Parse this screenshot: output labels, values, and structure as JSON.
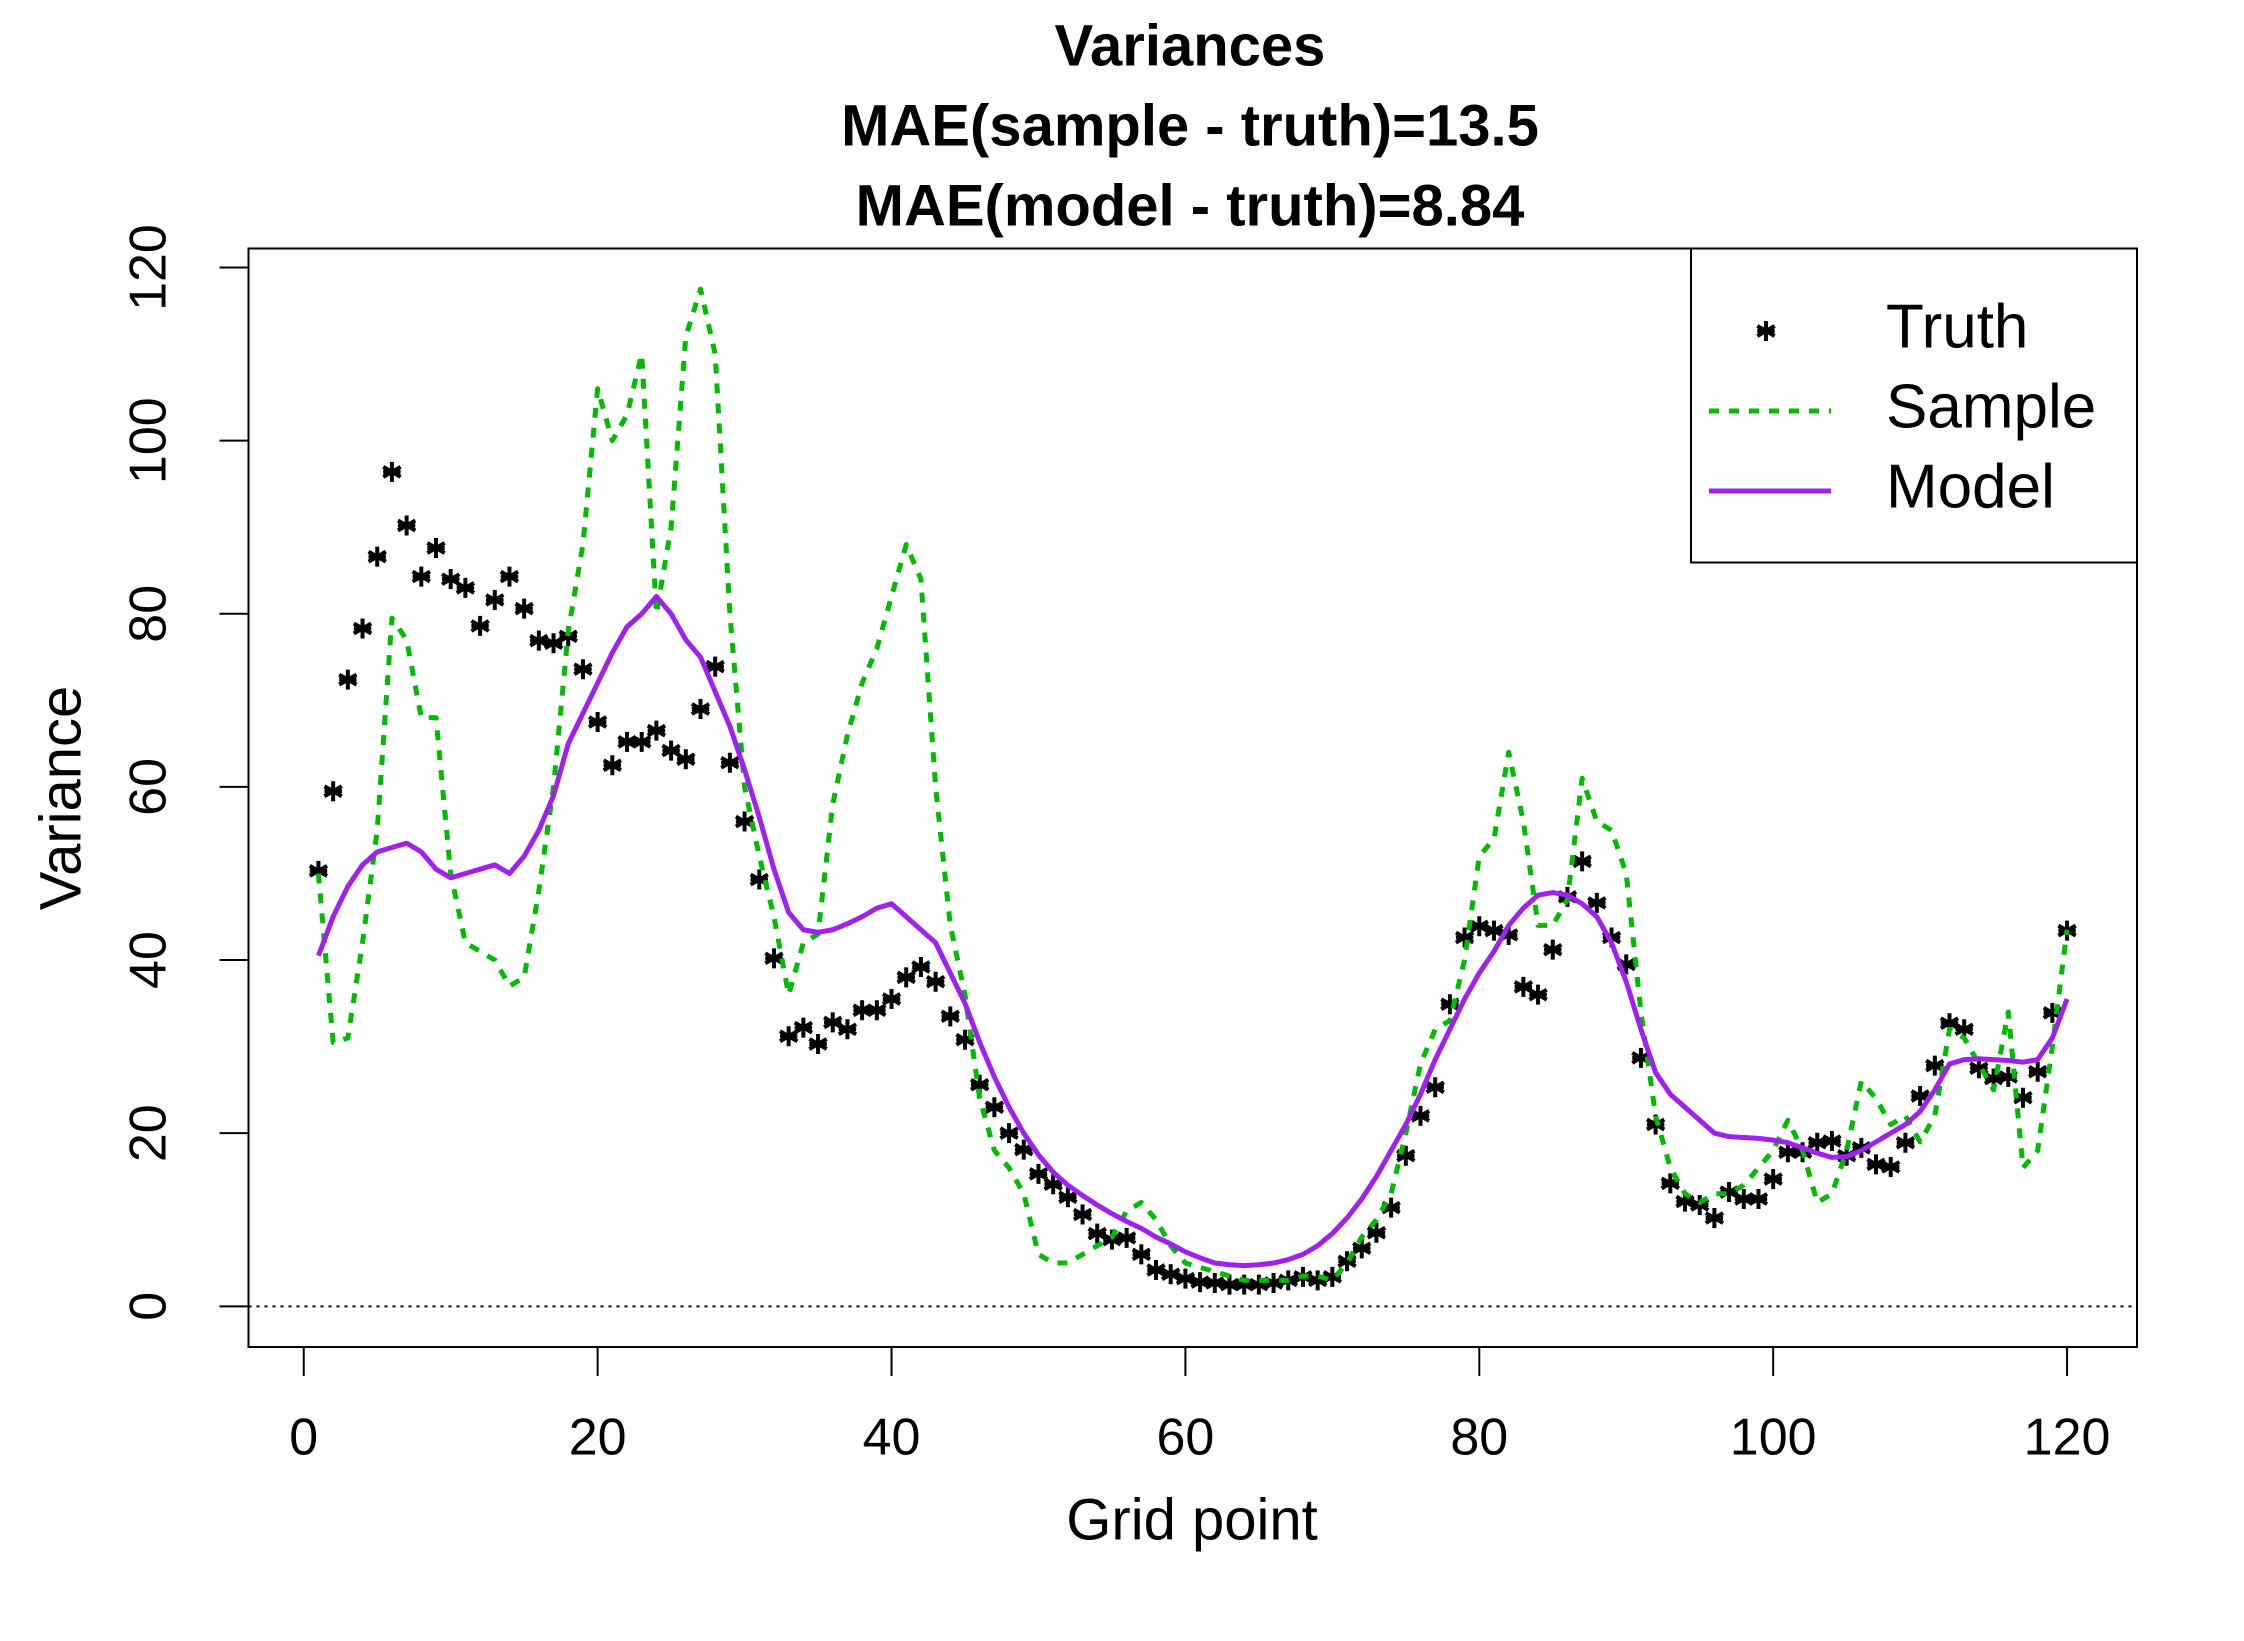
{
  "chart_data": {
    "type": "line",
    "title": "Variances",
    "subtitle": [
      "MAE(sample - truth)=13.5",
      "MAE(model - truth)=8.84"
    ],
    "xlabel": "Grid point",
    "ylabel": "Variance",
    "xlim": [
      -3.76,
      124.76
    ],
    "ylim": [
      -4.7,
      122.2
    ],
    "xticks": [
      0,
      20,
      40,
      60,
      80,
      100,
      120
    ],
    "yticks": [
      0,
      20,
      40,
      60,
      80,
      100,
      120
    ],
    "reference_line": 0,
    "legend": "topright",
    "x": [
      1,
      2,
      3,
      4,
      5,
      6,
      7,
      8,
      9,
      10,
      11,
      12,
      13,
      14,
      15,
      16,
      17,
      18,
      19,
      20,
      21,
      22,
      23,
      24,
      25,
      26,
      27,
      28,
      29,
      30,
      31,
      32,
      33,
      34,
      35,
      36,
      37,
      38,
      39,
      40,
      41,
      42,
      43,
      44,
      45,
      46,
      47,
      48,
      49,
      50,
      51,
      52,
      53,
      54,
      55,
      56,
      57,
      58,
      59,
      60,
      61,
      62,
      63,
      64,
      65,
      66,
      67,
      68,
      69,
      70,
      71,
      72,
      73,
      74,
      75,
      76,
      77,
      78,
      79,
      80,
      81,
      82,
      83,
      84,
      85,
      86,
      87,
      88,
      89,
      90,
      91,
      92,
      93,
      94,
      95,
      96,
      97,
      98,
      99,
      100,
      101,
      102,
      103,
      104,
      105,
      106,
      107,
      108,
      109,
      110,
      111,
      112,
      113,
      114,
      115,
      116,
      117,
      118,
      119,
      120
    ],
    "series": [
      {
        "name": "Truth",
        "color": "#000000",
        "style": "points",
        "values": [
          50.3,
          59.5,
          72.4,
          78.3,
          86.6,
          96.4,
          90.2,
          84.3,
          87.6,
          84,
          83,
          78.6,
          81.6,
          84.3,
          80.6,
          76.9,
          76.6,
          77.4,
          73.6,
          67.5,
          62.5,
          65.2,
          65.2,
          66.5,
          64.2,
          63.2,
          69,
          73.9,
          62.8,
          56,
          49.3,
          40.2,
          31.2,
          32.2,
          30.3,
          32.8,
          32,
          34.2,
          34.2,
          35.5,
          38,
          39.2,
          37.5,
          33.5,
          30.8,
          25.6,
          23,
          20,
          18.1,
          15.3,
          14.1,
          12.6,
          10.6,
          8.4,
          7.7,
          7.9,
          6,
          4.2,
          3.7,
          3.2,
          2.8,
          2.7,
          2.5,
          2.5,
          2.5,
          2.7,
          3,
          3.4,
          3,
          3.4,
          5.2,
          6.7,
          8.5,
          11.4,
          17.4,
          22,
          25.3,
          34.9,
          42.6,
          43.9,
          43.4,
          42.9,
          36.9,
          36,
          41.2,
          47.3,
          51.4,
          46.6,
          42.6,
          39.5,
          28.7,
          21,
          14.2,
          12.1,
          11.7,
          10.2,
          13.2,
          12.4,
          12.4,
          14.7,
          17.8,
          17.8,
          18.9,
          19.1,
          17.4,
          18.3,
          16.4,
          16.1,
          18.9,
          24.3,
          27.8,
          32.7,
          32,
          27.5,
          26.3,
          26.5,
          24.1,
          27.1,
          33.9,
          43.4
        ]
      },
      {
        "name": "Sample",
        "color": "#00bb00",
        "style": "dashed",
        "values": [
          50,
          30.5,
          31,
          42,
          55,
          79.5,
          77,
          68,
          68,
          50,
          42,
          41,
          40,
          37,
          38,
          48,
          60,
          78,
          88,
          106,
          100,
          103,
          110,
          80,
          90,
          112,
          117.5,
          110,
          80,
          60,
          52,
          45,
          36,
          42,
          43,
          58,
          66,
          72,
          76,
          82,
          88,
          84,
          60,
          44,
          36,
          24,
          18,
          16,
          13,
          6,
          5,
          5,
          6,
          7,
          8,
          11,
          12,
          10,
          7,
          5,
          4.5,
          4,
          3.5,
          3,
          3,
          3,
          3,
          3.5,
          3.5,
          3,
          5,
          8,
          10,
          13,
          20,
          28,
          32,
          33,
          40,
          52,
          54,
          64,
          56,
          44,
          44,
          47,
          61,
          56,
          55,
          50,
          34,
          22,
          16,
          13,
          12,
          13,
          13,
          14,
          16,
          18,
          21.5,
          18,
          12,
          13,
          18,
          26,
          24,
          21,
          22,
          19,
          22,
          32,
          31,
          28,
          25,
          34,
          16,
          18,
          30,
          43.5
        ]
      },
      {
        "name": "Model",
        "color": "#a020f0",
        "style": "solid",
        "values": [
          40.5,
          45,
          48.5,
          51,
          52.5,
          53,
          53.5,
          52.5,
          50.5,
          49.5,
          50,
          50.5,
          51,
          50,
          52,
          55,
          59,
          65,
          68.5,
          72,
          75.5,
          78.5,
          80,
          82,
          80,
          77,
          75,
          71,
          67,
          62,
          56.5,
          50.5,
          45.5,
          43.5,
          43.2,
          43.5,
          44.2,
          45,
          46,
          46.5,
          45,
          43.5,
          42,
          38.5,
          35,
          30.5,
          26.5,
          23,
          20,
          17.5,
          15.5,
          14,
          12.8,
          11.7,
          10.7,
          9.8,
          9,
          8,
          7.2,
          6.3,
          5.6,
          5,
          4.8,
          4.7,
          4.8,
          5,
          5.4,
          6,
          7,
          8.4,
          10.2,
          12.4,
          15,
          18,
          21,
          24.5,
          28.5,
          32,
          35.5,
          38.5,
          41,
          44,
          46,
          47.5,
          47.8,
          47.5,
          46.5,
          45,
          42,
          37.5,
          32,
          27,
          24.5,
          23,
          21.5,
          20,
          19.6,
          19.5,
          19.4,
          19.2,
          18.9,
          18.3,
          17.7,
          17.2,
          17.3,
          18,
          19,
          20,
          21,
          22.5,
          25,
          28,
          28.5,
          28.6,
          28.5,
          28.4,
          28.2,
          28.5,
          31,
          35.5
        ]
      }
    ]
  }
}
